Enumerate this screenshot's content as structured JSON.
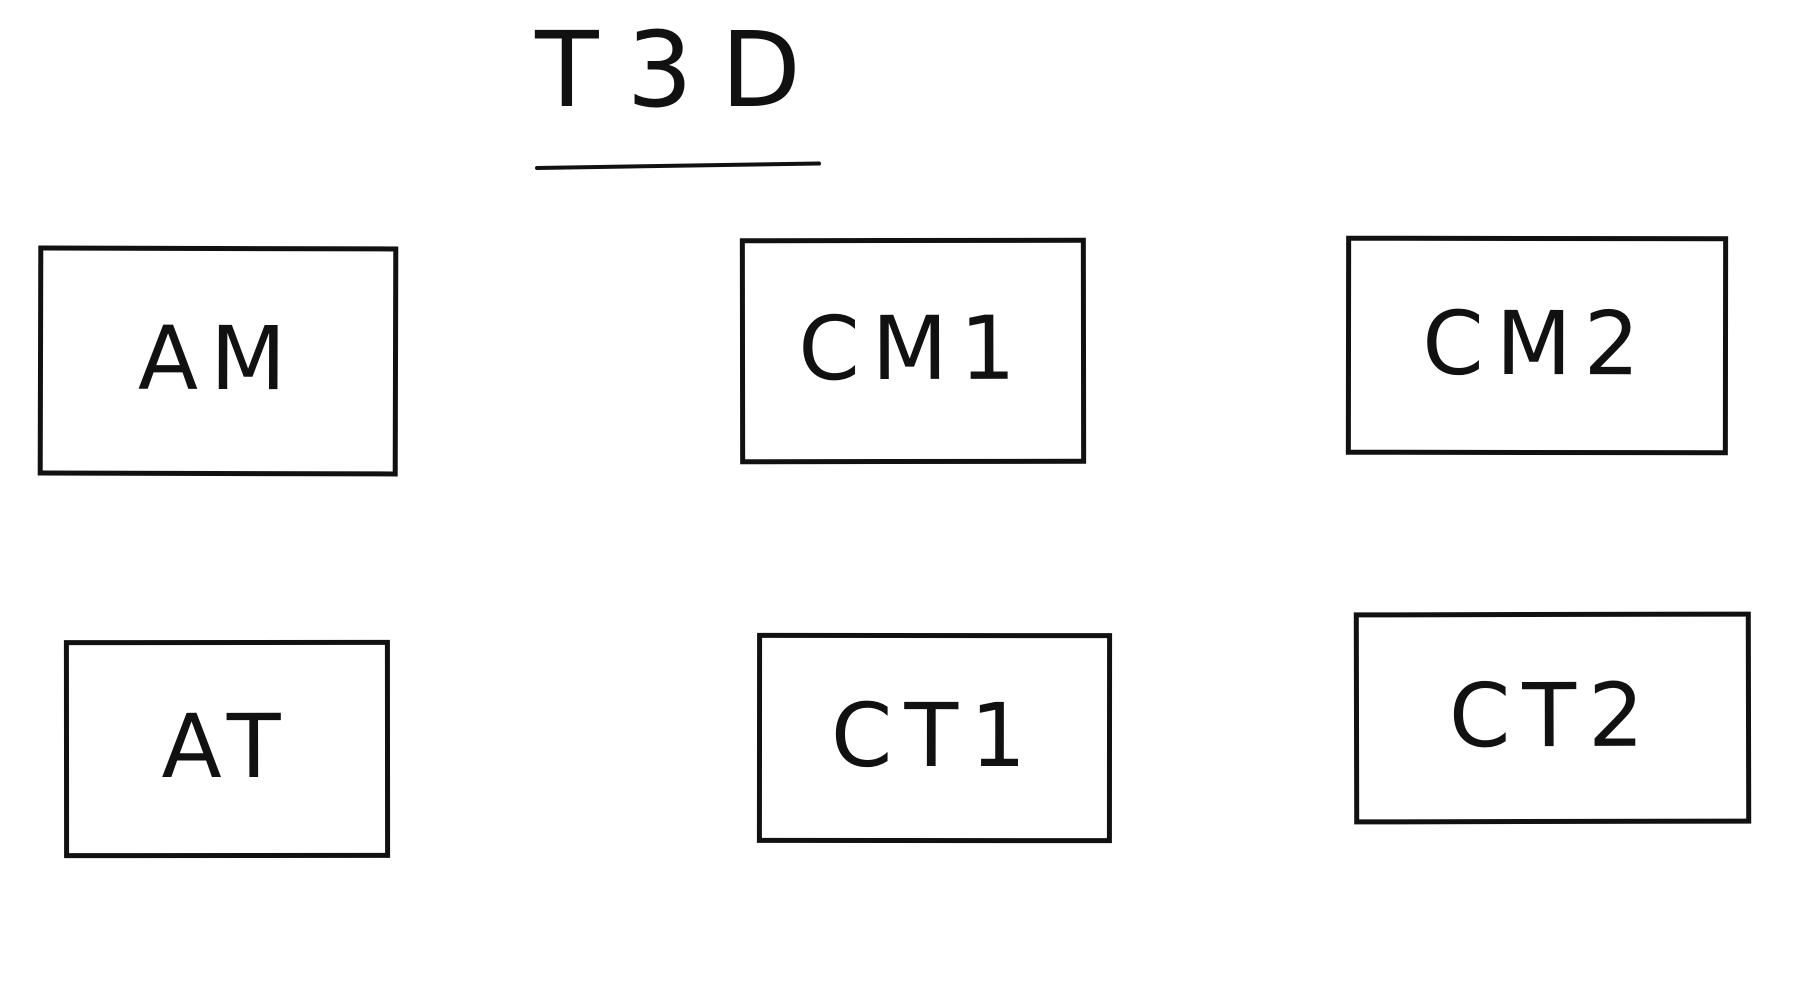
{
  "diagram": {
    "title": "T3D",
    "nodes": [
      {
        "label": "AM"
      },
      {
        "label": "CM1"
      },
      {
        "label": "CM2"
      },
      {
        "label": "AT"
      },
      {
        "label": "CT1"
      },
      {
        "label": "CT2"
      }
    ]
  }
}
